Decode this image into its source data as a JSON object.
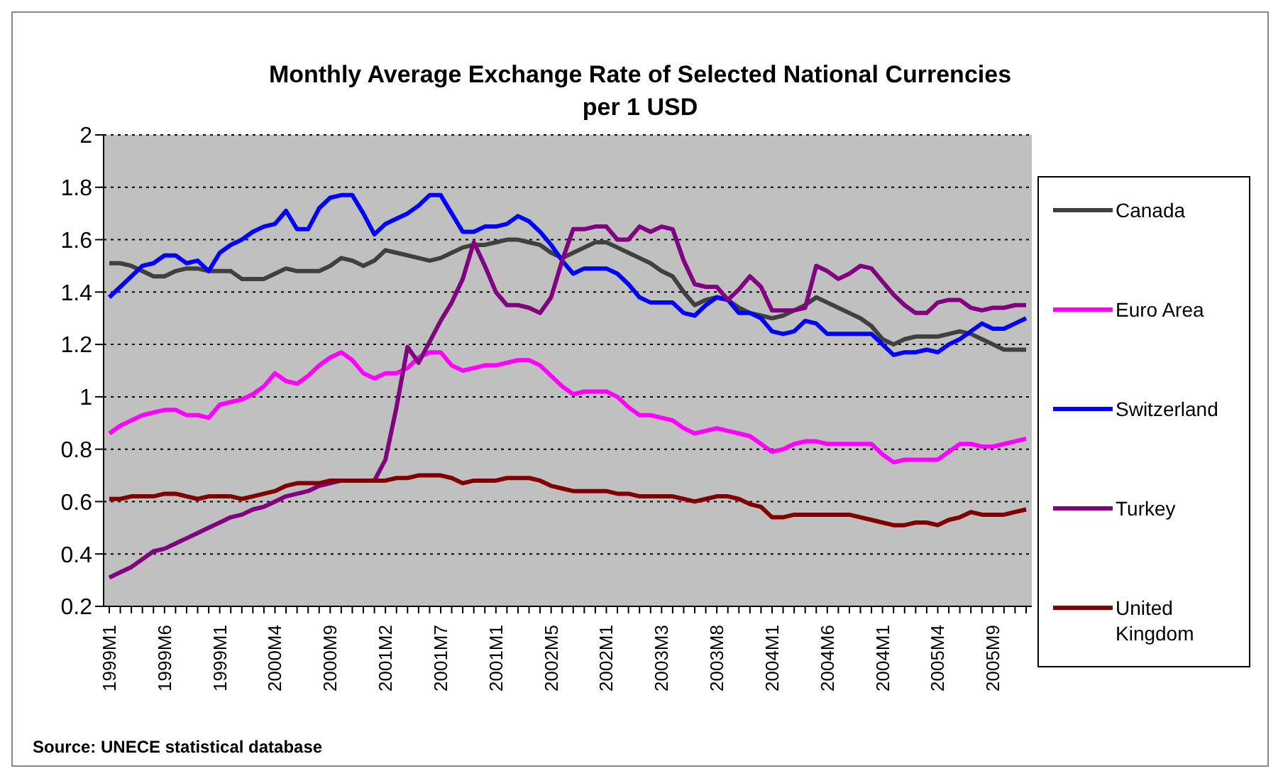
{
  "chart_data": {
    "type": "line",
    "title": "Monthly Average Exchange Rate of Selected National Currencies\nper 1 USD",
    "categories": [
      "1999M1",
      null,
      null,
      null,
      null,
      "1999M6",
      null,
      null,
      null,
      null,
      "1999M1",
      null,
      null,
      null,
      null,
      "2000M4",
      null,
      null,
      null,
      null,
      "2000M9",
      null,
      null,
      null,
      null,
      "2001M2",
      null,
      null,
      null,
      null,
      "2001M7",
      null,
      null,
      null,
      null,
      "2001M1",
      null,
      null,
      null,
      null,
      "2002M5",
      null,
      null,
      null,
      null,
      "2002M1",
      null,
      null,
      null,
      null,
      "2003M3",
      null,
      null,
      null,
      null,
      "2003M8",
      null,
      null,
      null,
      null,
      "2004M1",
      null,
      null,
      null,
      null,
      "2004M6",
      null,
      null,
      null,
      null,
      "2004M1",
      null,
      null,
      null,
      null,
      "2005M4",
      null,
      null,
      null,
      null,
      "2005M9",
      null,
      null,
      null
    ],
    "series": [
      {
        "name": "Canada",
        "color": "#404040",
        "values": [
          1.51,
          1.51,
          1.5,
          1.48,
          1.46,
          1.46,
          1.48,
          1.49,
          1.49,
          1.48,
          1.48,
          1.48,
          1.45,
          1.45,
          1.45,
          1.47,
          1.49,
          1.48,
          1.48,
          1.48,
          1.5,
          1.53,
          1.52,
          1.5,
          1.52,
          1.56,
          1.55,
          1.54,
          1.53,
          1.52,
          1.53,
          1.55,
          1.57,
          1.58,
          1.58,
          1.59,
          1.6,
          1.6,
          1.59,
          1.58,
          1.55,
          1.53,
          1.55,
          1.57,
          1.59,
          1.59,
          1.57,
          1.55,
          1.53,
          1.51,
          1.48,
          1.46,
          1.4,
          1.35,
          1.37,
          1.38,
          1.37,
          1.34,
          1.32,
          1.31,
          1.3,
          1.31,
          1.33,
          1.35,
          1.38,
          1.36,
          1.34,
          1.32,
          1.3,
          1.27,
          1.22,
          1.2,
          1.22,
          1.23,
          1.23,
          1.23,
          1.24,
          1.25,
          1.24,
          1.22,
          1.2,
          1.18,
          1.18,
          1.18
        ]
      },
      {
        "name": "Euro Area",
        "color": "#ff00ff",
        "values": [
          0.86,
          0.89,
          0.91,
          0.93,
          0.94,
          0.95,
          0.95,
          0.93,
          0.93,
          0.92,
          0.97,
          0.98,
          0.99,
          1.01,
          1.04,
          1.09,
          1.06,
          1.05,
          1.08,
          1.12,
          1.15,
          1.17,
          1.14,
          1.09,
          1.07,
          1.09,
          1.09,
          1.11,
          1.15,
          1.17,
          1.17,
          1.12,
          1.1,
          1.11,
          1.12,
          1.12,
          1.13,
          1.14,
          1.14,
          1.12,
          1.08,
          1.04,
          1.01,
          1.02,
          1.02,
          1.02,
          1.0,
          0.96,
          0.93,
          0.93,
          0.92,
          0.91,
          0.88,
          0.86,
          0.87,
          0.88,
          0.87,
          0.86,
          0.85,
          0.82,
          0.79,
          0.8,
          0.82,
          0.83,
          0.83,
          0.82,
          0.82,
          0.82,
          0.82,
          0.82,
          0.78,
          0.75,
          0.76,
          0.76,
          0.76,
          0.76,
          0.79,
          0.82,
          0.82,
          0.81,
          0.81,
          0.82,
          0.83,
          0.84
        ]
      },
      {
        "name": "Switzerland",
        "color": "#0000ff",
        "values": [
          1.38,
          1.42,
          1.46,
          1.5,
          1.51,
          1.54,
          1.54,
          1.51,
          1.52,
          1.48,
          1.55,
          1.58,
          1.6,
          1.63,
          1.65,
          1.66,
          1.71,
          1.64,
          1.64,
          1.72,
          1.76,
          1.77,
          1.77,
          1.7,
          1.62,
          1.66,
          1.68,
          1.7,
          1.73,
          1.77,
          1.77,
          1.7,
          1.63,
          1.63,
          1.65,
          1.65,
          1.66,
          1.69,
          1.67,
          1.63,
          1.58,
          1.52,
          1.47,
          1.49,
          1.49,
          1.49,
          1.47,
          1.43,
          1.38,
          1.36,
          1.36,
          1.36,
          1.32,
          1.31,
          1.35,
          1.38,
          1.37,
          1.32,
          1.32,
          1.3,
          1.25,
          1.24,
          1.25,
          1.29,
          1.28,
          1.24,
          1.24,
          1.24,
          1.24,
          1.24,
          1.2,
          1.16,
          1.17,
          1.17,
          1.18,
          1.17,
          1.2,
          1.22,
          1.25,
          1.28,
          1.26,
          1.26,
          1.28,
          1.3
        ]
      },
      {
        "name": "Turkey",
        "color": "#800080",
        "values": [
          0.31,
          0.33,
          0.35,
          0.38,
          0.41,
          0.42,
          0.44,
          0.46,
          0.48,
          0.5,
          0.52,
          0.54,
          0.55,
          0.57,
          0.58,
          0.6,
          0.62,
          0.63,
          0.64,
          0.66,
          0.67,
          0.68,
          0.68,
          0.68,
          0.68,
          0.76,
          0.96,
          1.19,
          1.13,
          1.21,
          1.29,
          1.36,
          1.45,
          1.59,
          1.5,
          1.4,
          1.35,
          1.35,
          1.34,
          1.32,
          1.38,
          1.52,
          1.64,
          1.64,
          1.65,
          1.65,
          1.6,
          1.6,
          1.65,
          1.63,
          1.65,
          1.64,
          1.52,
          1.43,
          1.42,
          1.42,
          1.37,
          1.41,
          1.46,
          1.42,
          1.33,
          1.33,
          1.33,
          1.34,
          1.5,
          1.48,
          1.45,
          1.47,
          1.5,
          1.49,
          1.44,
          1.39,
          1.35,
          1.32,
          1.32,
          1.36,
          1.37,
          1.37,
          1.34,
          1.33,
          1.34,
          1.34,
          1.35,
          1.35
        ]
      },
      {
        "name": "United Kingdom",
        "color": "#800000",
        "values": [
          0.61,
          0.61,
          0.62,
          0.62,
          0.62,
          0.63,
          0.63,
          0.62,
          0.61,
          0.62,
          0.62,
          0.62,
          0.61,
          0.62,
          0.63,
          0.64,
          0.66,
          0.67,
          0.67,
          0.67,
          0.68,
          0.68,
          0.68,
          0.68,
          0.68,
          0.68,
          0.69,
          0.69,
          0.7,
          0.7,
          0.7,
          0.69,
          0.67,
          0.68,
          0.68,
          0.68,
          0.69,
          0.69,
          0.69,
          0.68,
          0.66,
          0.65,
          0.64,
          0.64,
          0.64,
          0.64,
          0.63,
          0.63,
          0.62,
          0.62,
          0.62,
          0.62,
          0.61,
          0.6,
          0.61,
          0.62,
          0.62,
          0.61,
          0.59,
          0.58,
          0.54,
          0.54,
          0.55,
          0.55,
          0.55,
          0.55,
          0.55,
          0.55,
          0.54,
          0.53,
          0.52,
          0.51,
          0.51,
          0.52,
          0.52,
          0.51,
          0.53,
          0.54,
          0.56,
          0.55,
          0.55,
          0.55,
          0.56,
          0.57
        ]
      }
    ],
    "ylim": [
      0.2,
      2
    ],
    "yticks": [
      0.2,
      0.4,
      0.6,
      0.8,
      1,
      1.2,
      1.4,
      1.6,
      1.8,
      2
    ],
    "grid": "y",
    "legend": "right",
    "marker": "none",
    "line_style": "solid",
    "annotations": [
      "Source: UNECE statistical database"
    ]
  }
}
